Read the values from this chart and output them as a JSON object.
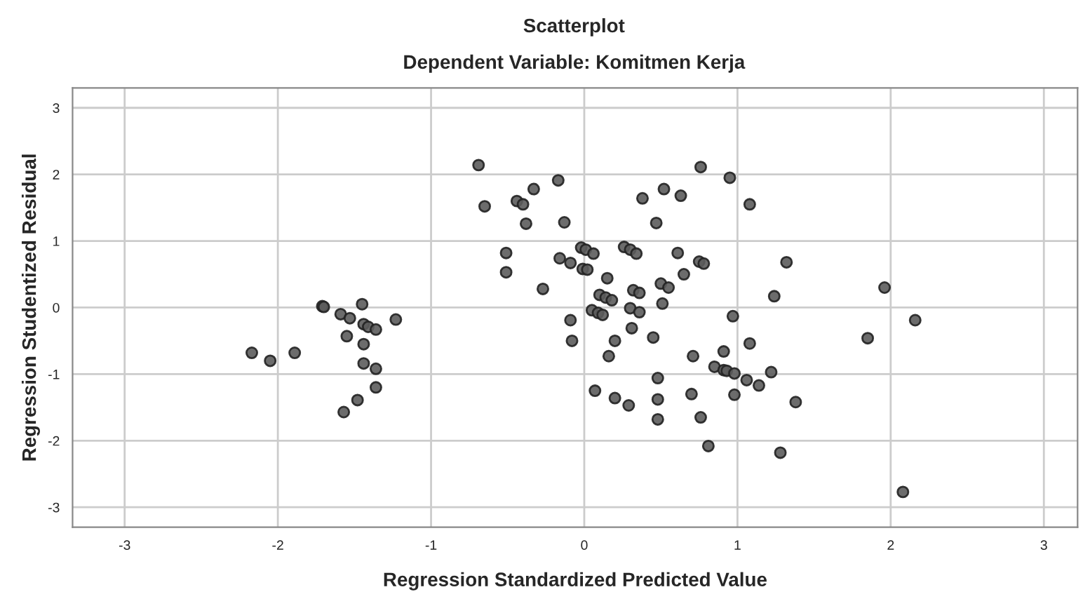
{
  "chart_data": {
    "type": "scatter",
    "title": "Scatterplot",
    "subtitle": "Dependent Variable: Komitmen Kerja",
    "xlabel": "Regression Standardized Predicted Value",
    "ylabel": "Regression Studentized Residual",
    "x": [
      -1.71,
      -1.7,
      -1.45,
      -1.59,
      -1.53,
      -1.44,
      -1.41,
      -1.36,
      -1.23,
      -1.55,
      -1.44,
      -2.17,
      -2.05,
      -1.89,
      -1.44,
      -1.36,
      -1.36,
      -1.48,
      -1.57,
      -0.69,
      -0.65,
      -0.44,
      -0.4,
      -0.33,
      -0.17,
      -0.38,
      -0.13,
      -0.51,
      -0.51,
      -0.27,
      -0.16,
      -0.09,
      -0.02,
      0.01,
      0.06,
      -0.01,
      0.02,
      0.15,
      0.1,
      0.14,
      0.18,
      0.05,
      0.09,
      0.12,
      -0.09,
      -0.08,
      0.2,
      0.16,
      0.07,
      0.2,
      0.29,
      0.26,
      0.3,
      0.34,
      0.32,
      0.36,
      0.3,
      0.36,
      0.31,
      0.45,
      0.38,
      0.52,
      0.63,
      0.47,
      0.76,
      0.61,
      0.65,
      0.5,
      0.55,
      0.51,
      0.48,
      0.48,
      0.48,
      0.71,
      0.7,
      0.76,
      0.81,
      0.75,
      0.78,
      0.95,
      1.08,
      1.32,
      1.24,
      1.96,
      0.97,
      2.16,
      1.85,
      1.08,
      0.91,
      0.85,
      0.91,
      0.93,
      0.98,
      1.06,
      1.14,
      1.22,
      0.98,
      1.38,
      1.28,
      2.08
    ],
    "values": [
      0.02,
      0.01,
      0.05,
      -0.1,
      -0.16,
      -0.25,
      -0.29,
      -0.33,
      -0.18,
      -0.43,
      -0.55,
      -0.68,
      -0.8,
      -0.68,
      -0.84,
      -0.92,
      -1.2,
      -1.39,
      -1.57,
      2.14,
      1.52,
      1.6,
      1.55,
      1.78,
      1.91,
      1.26,
      1.28,
      0.82,
      0.53,
      0.28,
      0.74,
      0.67,
      0.9,
      0.87,
      0.81,
      0.58,
      0.57,
      0.44,
      0.19,
      0.15,
      0.11,
      -0.04,
      -0.08,
      -0.11,
      -0.19,
      -0.5,
      -0.5,
      -0.73,
      -1.25,
      -1.36,
      -1.47,
      0.91,
      0.87,
      0.81,
      0.26,
      0.22,
      -0.01,
      -0.07,
      -0.31,
      -0.45,
      1.64,
      1.78,
      1.68,
      1.27,
      2.11,
      0.82,
      0.5,
      0.36,
      0.3,
      0.06,
      -1.06,
      -1.38,
      -1.68,
      -0.73,
      -1.3,
      -1.65,
      -2.08,
      0.69,
      0.66,
      1.95,
      1.55,
      0.68,
      0.17,
      0.3,
      -0.13,
      -0.19,
      -0.46,
      -0.54,
      -0.66,
      -0.89,
      -0.94,
      -0.95,
      -0.99,
      -1.09,
      -1.17,
      -0.97,
      -1.31,
      -1.42,
      -2.18,
      -2.77
    ],
    "color": "#5c5c5c",
    "marker": "circle",
    "grid": true,
    "xlim": [
      -3.34,
      3.22
    ],
    "ylim": [
      -3.3,
      3.3
    ],
    "xticks": [
      -3,
      -2,
      -1,
      0,
      1,
      2,
      3
    ],
    "yticks": [
      -3,
      -2,
      -1,
      0,
      1,
      2,
      3
    ]
  }
}
